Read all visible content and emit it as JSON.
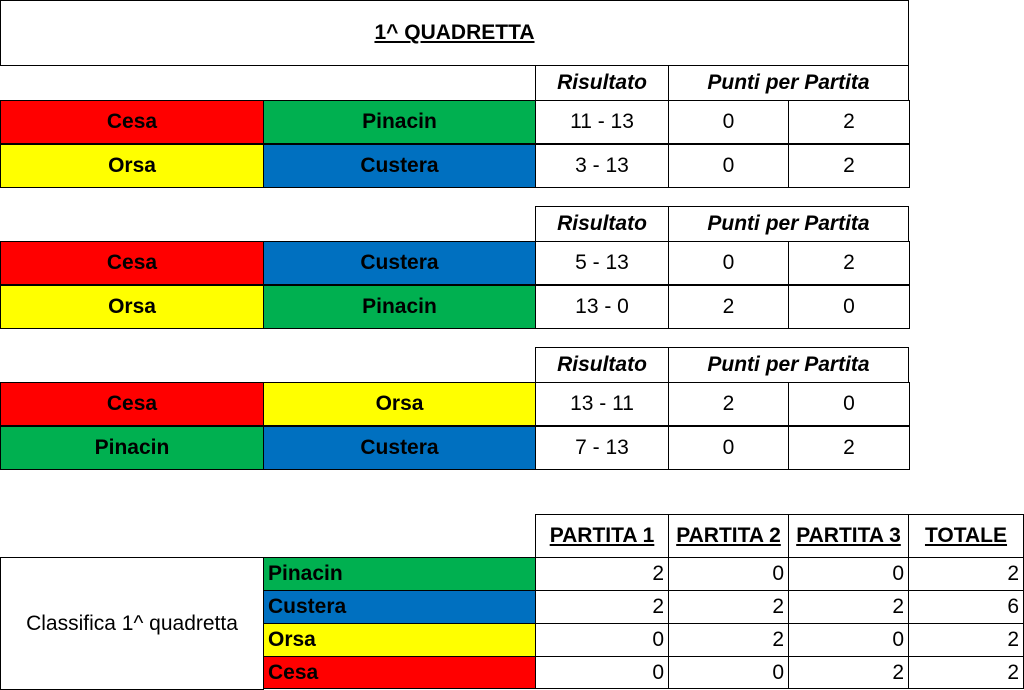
{
  "title": "1^ QUADRETTA",
  "rounds": [
    {
      "headers": {
        "result": "Risultato",
        "points": "Punti per Partita"
      },
      "matches": [
        {
          "teams": [
            {
              "name": "Cesa",
              "color": "#ff0000"
            },
            {
              "name": "Pinacin",
              "color": "#00b050"
            }
          ],
          "score": "11 - 13",
          "points": [
            0,
            2
          ]
        },
        {
          "teams": [
            {
              "name": "Orsa",
              "color": "#ffff00"
            },
            {
              "name": "Custera",
              "color": "#0070c0"
            }
          ],
          "score": "3 - 13",
          "points": [
            0,
            2
          ]
        }
      ]
    },
    {
      "headers": {
        "result": "Risultato",
        "points": "Punti per Partita"
      },
      "matches": [
        {
          "teams": [
            {
              "name": "Cesa",
              "color": "#ff0000"
            },
            {
              "name": "Custera",
              "color": "#0070c0"
            }
          ],
          "score": "5 - 13",
          "points": [
            0,
            2
          ]
        },
        {
          "teams": [
            {
              "name": "Orsa",
              "color": "#ffff00"
            },
            {
              "name": "Pinacin",
              "color": "#00b050"
            }
          ],
          "score": "13 - 0",
          "points": [
            2,
            0
          ]
        }
      ]
    },
    {
      "headers": {
        "result": "Risultato",
        "points": "Punti per Partita"
      },
      "matches": [
        {
          "teams": [
            {
              "name": "Cesa",
              "color": "#ff0000"
            },
            {
              "name": "Orsa",
              "color": "#ffff00"
            }
          ],
          "score": "13 - 11",
          "points": [
            2,
            0
          ]
        },
        {
          "teams": [
            {
              "name": "Pinacin",
              "color": "#00b050"
            },
            {
              "name": "Custera",
              "color": "#0070c0"
            }
          ],
          "score": "7 - 13",
          "points": [
            0,
            2
          ]
        }
      ]
    }
  ],
  "standings": {
    "label": "Classifica 1^ quadretta",
    "headers": [
      "PARTITA 1",
      "PARTITA 2",
      "PARTITA 3",
      "TOTALE"
    ],
    "rows": [
      {
        "team": "Pinacin",
        "color": "#00b050",
        "values": [
          2,
          0,
          0,
          2
        ]
      },
      {
        "team": "Custera",
        "color": "#0070c0",
        "values": [
          2,
          2,
          2,
          6
        ]
      },
      {
        "team": "Orsa",
        "color": "#ffff00",
        "values": [
          0,
          2,
          0,
          2
        ]
      },
      {
        "team": "Cesa",
        "color": "#ff0000",
        "values": [
          0,
          0,
          2,
          2
        ]
      }
    ]
  }
}
